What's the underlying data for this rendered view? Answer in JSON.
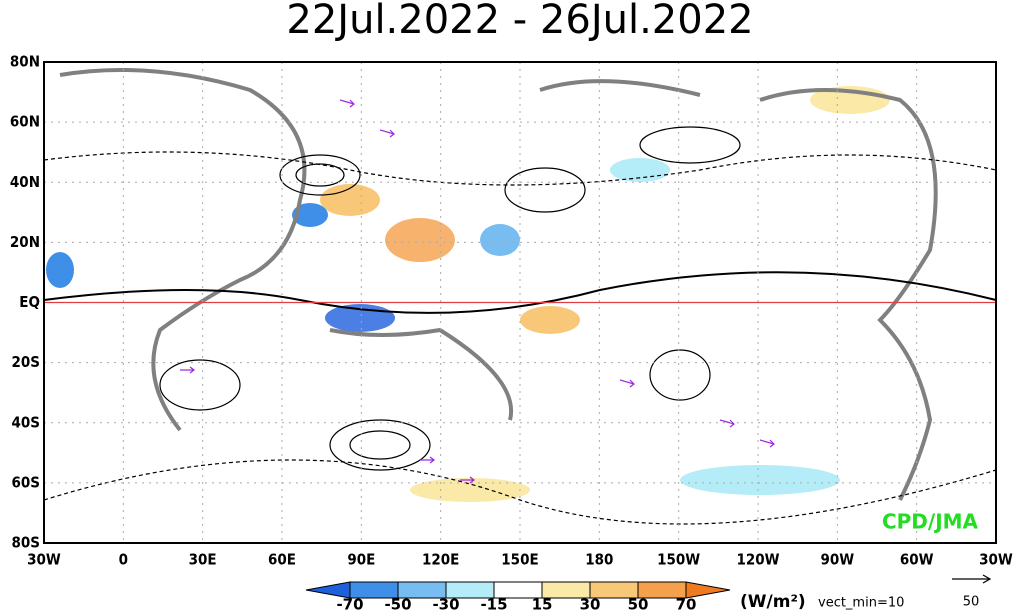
{
  "title": "22Jul.2022 - 26Jul.2022",
  "map": {
    "xlim": [
      -30,
      330
    ],
    "ylim": [
      -80,
      80
    ],
    "lat_ticks": [
      {
        "value": 80,
        "label": "80N"
      },
      {
        "value": 60,
        "label": "60N"
      },
      {
        "value": 40,
        "label": "40N"
      },
      {
        "value": 20,
        "label": "20N"
      },
      {
        "value": 0,
        "label": "EQ"
      },
      {
        "value": -20,
        "label": "20S"
      },
      {
        "value": -40,
        "label": "40S"
      },
      {
        "value": -60,
        "label": "60S"
      },
      {
        "value": -80,
        "label": "80S"
      }
    ],
    "lon_ticks": [
      {
        "value": -30,
        "label": "30W"
      },
      0,
      {
        "value": 30,
        "label": "30E"
      },
      {
        "value": 60,
        "label": "60E"
      },
      {
        "value": 90,
        "label": "90E"
      },
      {
        "value": 120,
        "label": "120E"
      },
      {
        "value": 150,
        "label": "150E"
      },
      180,
      {
        "value": 210,
        "label": "150W"
      },
      {
        "value": 240,
        "label": "120W"
      },
      {
        "value": 270,
        "label": "90W"
      },
      {
        "value": 300,
        "label": "60W"
      },
      {
        "value": 330,
        "label": "30W"
      }
    ],
    "equator_color": "#e04040",
    "credit": "CPD/JMA"
  },
  "colorbar": {
    "levels": [
      -70,
      -50,
      -30,
      -15,
      15,
      30,
      50,
      70
    ],
    "colors": [
      "#1e5fdc",
      "#3f8fe8",
      "#78bdf2",
      "#b4ecf8",
      "#ffffff",
      "#fbe9a8",
      "#f8c878",
      "#f5a04a",
      "#ee7a22"
    ],
    "units": "(W/m²)"
  },
  "vector": {
    "note": "vect_min=10",
    "reference": 50
  }
}
